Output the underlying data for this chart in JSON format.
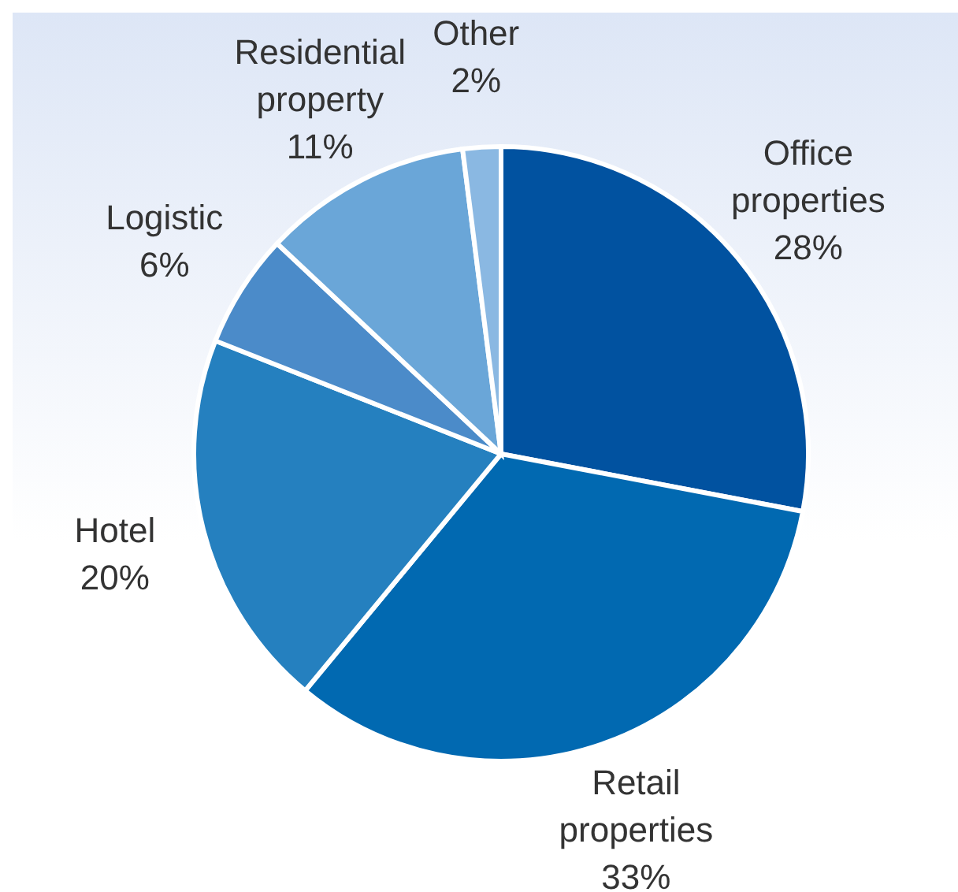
{
  "chart_data": {
    "type": "pie",
    "categories": [
      "Office properties",
      "Retail properties",
      "Hotel",
      "Logistic",
      "Residential property",
      "Other"
    ],
    "values": [
      28,
      33,
      20,
      6,
      11,
      2
    ],
    "value_labels": [
      "28%",
      "33%",
      "20%",
      "6%",
      "11%",
      "2%"
    ],
    "colors": [
      "#0152a0",
      "#0169b1",
      "#2580bf",
      "#4b8bc9",
      "#6aa6d8",
      "#8ab8e2"
    ],
    "legend": false
  }
}
